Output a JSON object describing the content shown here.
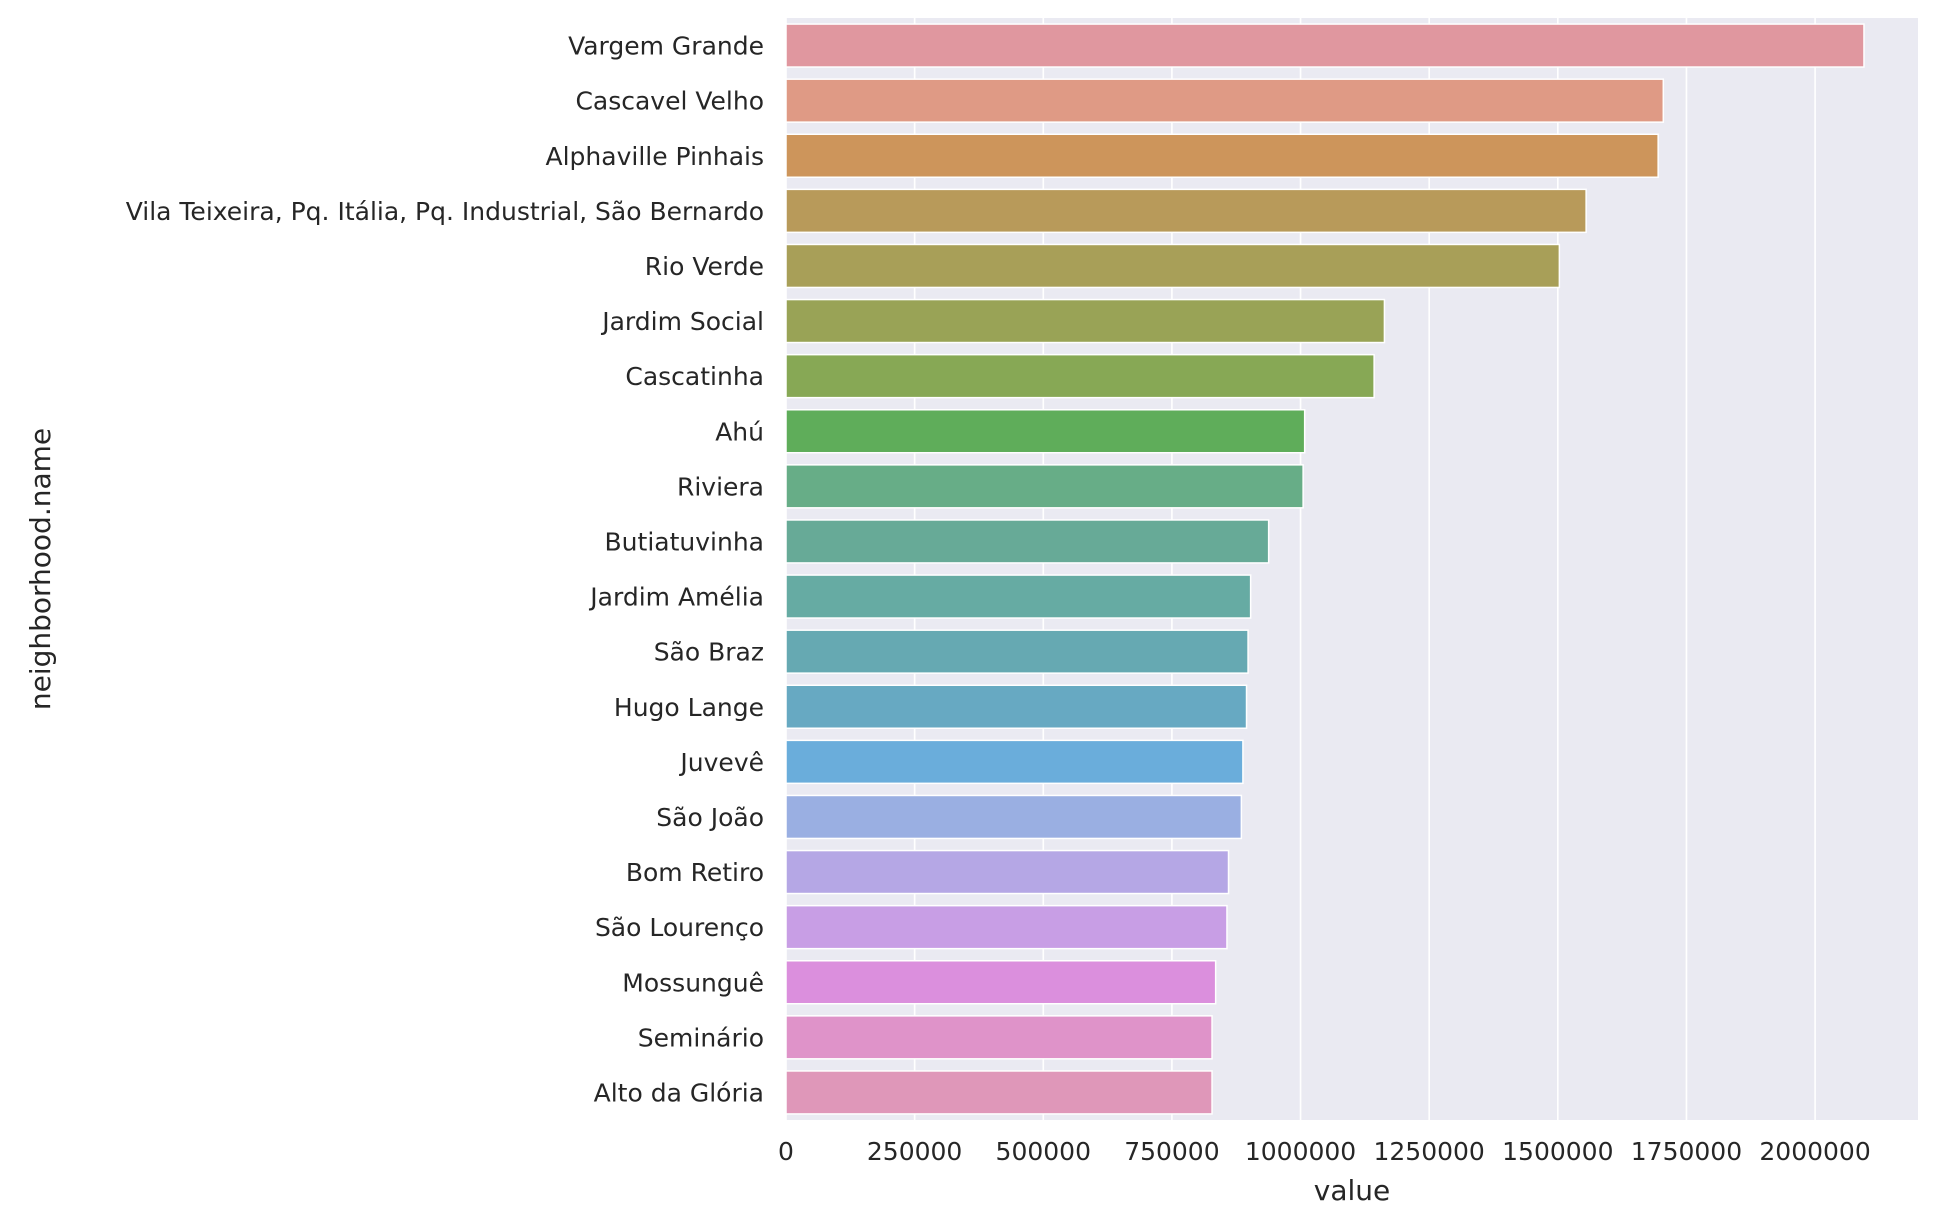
{
  "chart_data": {
    "type": "bar",
    "orientation": "horizontal",
    "xlabel": "value",
    "ylabel": "neighborhood.name",
    "xlim": [
      0,
      2200000
    ],
    "xticks": [
      0,
      250000,
      500000,
      750000,
      1000000,
      1250000,
      1500000,
      1750000,
      2000000
    ],
    "xtick_labels": [
      "0",
      "250000",
      "500000",
      "750000",
      "1000000",
      "1250000",
      "1500000",
      "1750000",
      "2000000"
    ],
    "grid": true,
    "categories": [
      "Vargem Grande",
      "Cascavel Velho",
      "Alphaville Pinhais ",
      "Vila Teixeira, Pq. Itália, Pq. Industrial, São Bernardo",
      "Rio Verde",
      "Jardim Social",
      "Cascatinha",
      "Ahú",
      "Riviera",
      "Butiatuvinha",
      "Jardim Amélia",
      "São Braz",
      "Hugo Lange",
      "Juvevê",
      "São João",
      "Bom Retiro",
      "São Lourenço",
      "Mossunguê",
      "Seminário",
      "Alto da Glória"
    ],
    "values": [
      2095000,
      1705000,
      1695000,
      1555000,
      1503000,
      1163000,
      1143000,
      1008000,
      1005000,
      938000,
      903000,
      898000,
      895000,
      888000,
      885000,
      860000,
      857000,
      835000,
      828000,
      828000
    ],
    "colors": [
      "#e0979f",
      "#df9a85",
      "#cd955b",
      "#b89a5a",
      "#a89f58",
      "#99a356",
      "#87a855",
      "#5fad5a",
      "#67ad87",
      "#67aa97",
      "#66aba3",
      "#66a9b2",
      "#67a9c2",
      "#6aaddb",
      "#9aafe2",
      "#b5a7e5",
      "#c89ee5",
      "#db8fdd",
      "#df93c9",
      "#df97b9"
    ],
    "plot_background": "#eaeaf2",
    "grid_color": "#ffffff"
  }
}
